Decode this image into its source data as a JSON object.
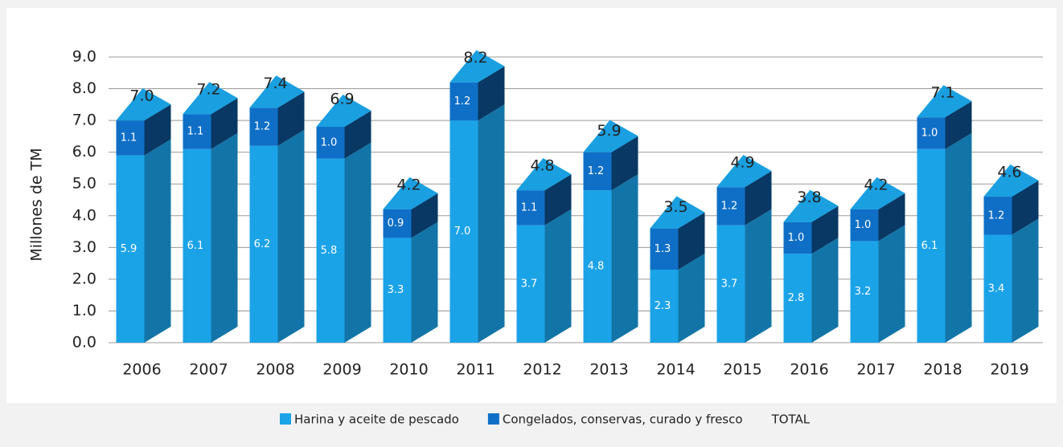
{
  "chart_data": {
    "type": "stacked-bar-3d",
    "y_axis_label": "Millones de TM",
    "categories": [
      "2006",
      "2007",
      "2008",
      "2009",
      "2010",
      "2011",
      "2012",
      "2013",
      "2014",
      "2015",
      "2016",
      "2017",
      "2018",
      "2019"
    ],
    "series": [
      {
        "name": "Harina y aceite de pescado",
        "color": "#1ba3e8",
        "values": [
          5.9,
          6.1,
          6.2,
          5.8,
          3.3,
          7.0,
          3.7,
          4.8,
          2.3,
          3.7,
          2.8,
          3.2,
          6.1,
          3.4
        ],
        "value_labels": [
          "5.9",
          "6.1",
          "6.2",
          "5.8",
          "3.3",
          "7.0",
          "3.7",
          "4.8",
          "2.3",
          "3.7",
          "2.8",
          "3.2",
          "6.1",
          "3.4"
        ]
      },
      {
        "name": "Congelados, conservas, curado y fresco",
        "color": "#0f6fc6",
        "values": [
          1.1,
          1.1,
          1.2,
          1.0,
          0.9,
          1.2,
          1.1,
          1.2,
          1.3,
          1.2,
          1.0,
          1.0,
          1.0,
          1.2
        ],
        "value_labels": [
          "1.1",
          "1.1",
          "1.2",
          "1.0",
          "0.9",
          "1.2",
          "1.1",
          "1.2",
          "1.3",
          "1.2",
          "1.0",
          "1.0",
          "1.0",
          "1.2"
        ]
      },
      {
        "name": "TOTAL",
        "values": [
          7.0,
          7.2,
          7.4,
          6.9,
          4.2,
          8.2,
          4.8,
          5.9,
          3.5,
          4.9,
          3.8,
          4.2,
          7.1,
          4.6
        ],
        "value_labels": [
          "7.0",
          "7.2",
          "7.4",
          "6.9",
          "4.2",
          "8.2",
          "4.8",
          "5.9",
          "3.5",
          "4.9",
          "3.8",
          "4.2",
          "7.1",
          "4.6"
        ]
      }
    ],
    "ylim": [
      0,
      9
    ],
    "yticks": [
      {
        "value": 0,
        "label": "0.0"
      },
      {
        "value": 1,
        "label": "1.0"
      },
      {
        "value": 2,
        "label": "2.0"
      },
      {
        "value": 3,
        "label": "3.0"
      },
      {
        "value": 4,
        "label": "4.0"
      },
      {
        "value": 5,
        "label": "5.0"
      },
      {
        "value": 6,
        "label": "6.0"
      },
      {
        "value": 7,
        "label": "7.0"
      },
      {
        "value": 8,
        "label": "8.0"
      },
      {
        "value": 9,
        "label": "9.0"
      }
    ],
    "grid": true,
    "legend": "bottom"
  }
}
